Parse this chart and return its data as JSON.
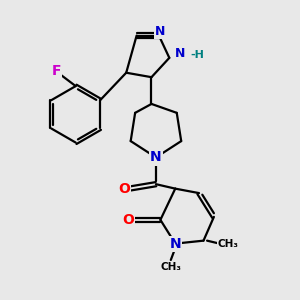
{
  "background_color": "#e8e8e8",
  "bond_color": "#000000",
  "bond_width": 1.6,
  "atom_colors": {
    "N": "#0000cc",
    "O": "#ff0000",
    "F": "#cc00cc",
    "H_label": "#008080",
    "C": "#000000"
  },
  "fig_size": [
    3.0,
    3.0
  ],
  "dpi": 100,
  "xlim": [
    0,
    10
  ],
  "ylim": [
    0,
    10
  ]
}
